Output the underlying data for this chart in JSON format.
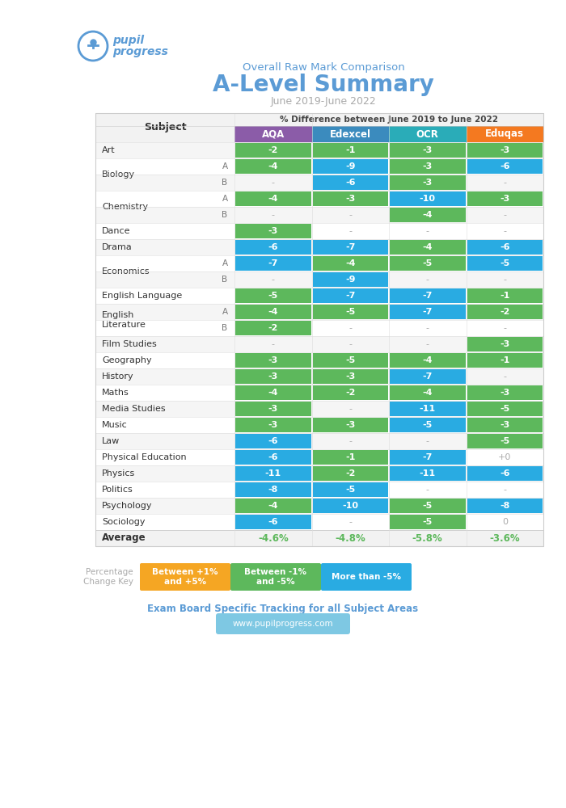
{
  "title_subtitle": "Overall Raw Mark Comparison",
  "title_main": "A-Level Summary",
  "title_date": "June 2019-June 2022",
  "col_header": "% Difference between June 2019 to June 2022",
  "columns": [
    "AQA",
    "Edexcel",
    "OCR",
    "Eduqas"
  ],
  "col_colors": [
    "#8B5CA8",
    "#3B8BBE",
    "#2AACB8",
    "#F47920"
  ],
  "rows": [
    {
      "subject": "Art",
      "sub": "",
      "vals": [
        "-2",
        "-1",
        "-3",
        "-3"
      ],
      "clrs": [
        "g",
        "g",
        "g",
        "g"
      ]
    },
    {
      "subject": "Biology",
      "sub": "A",
      "vals": [
        "-4",
        "-9",
        "-3",
        "-6"
      ],
      "clrs": [
        "g",
        "b",
        "g",
        "b"
      ]
    },
    {
      "subject": "Biology",
      "sub": "B",
      "vals": [
        "-",
        "-6",
        "-3",
        "-"
      ],
      "clrs": [
        "n",
        "b",
        "g",
        "n"
      ]
    },
    {
      "subject": "Chemistry",
      "sub": "A",
      "vals": [
        "-4",
        "-3",
        "-10",
        "-3"
      ],
      "clrs": [
        "g",
        "g",
        "b",
        "g"
      ]
    },
    {
      "subject": "Chemistry",
      "sub": "B",
      "vals": [
        "-",
        "-",
        "-4",
        "-"
      ],
      "clrs": [
        "n",
        "n",
        "g",
        "n"
      ]
    },
    {
      "subject": "Dance",
      "sub": "",
      "vals": [
        "-3",
        "-",
        "-",
        "-"
      ],
      "clrs": [
        "g",
        "n",
        "n",
        "n"
      ]
    },
    {
      "subject": "Drama",
      "sub": "",
      "vals": [
        "-6",
        "-7",
        "-4",
        "-6"
      ],
      "clrs": [
        "b",
        "b",
        "g",
        "b"
      ]
    },
    {
      "subject": "Economics",
      "sub": "A",
      "vals": [
        "-7",
        "-4",
        "-5",
        "-5"
      ],
      "clrs": [
        "b",
        "g",
        "g",
        "b"
      ]
    },
    {
      "subject": "Economics",
      "sub": "B",
      "vals": [
        "-",
        "-9",
        "-",
        "-"
      ],
      "clrs": [
        "n",
        "b",
        "n",
        "n"
      ]
    },
    {
      "subject": "English Language",
      "sub": "",
      "vals": [
        "-5",
        "-7",
        "-7",
        "-1"
      ],
      "clrs": [
        "g",
        "b",
        "b",
        "g"
      ]
    },
    {
      "subject": "English\nLiterature",
      "sub": "A",
      "vals": [
        "-4",
        "-5",
        "-7",
        "-2"
      ],
      "clrs": [
        "g",
        "g",
        "b",
        "g"
      ]
    },
    {
      "subject": "English\nLiterature",
      "sub": "B",
      "vals": [
        "-2",
        "-",
        "-",
        "-"
      ],
      "clrs": [
        "g",
        "n",
        "n",
        "n"
      ]
    },
    {
      "subject": "Film Studies",
      "sub": "",
      "vals": [
        "-",
        "-",
        "-",
        "-3"
      ],
      "clrs": [
        "n",
        "n",
        "n",
        "g"
      ]
    },
    {
      "subject": "Geography",
      "sub": "",
      "vals": [
        "-3",
        "-5",
        "-4",
        "-1"
      ],
      "clrs": [
        "g",
        "g",
        "g",
        "g"
      ]
    },
    {
      "subject": "History",
      "sub": "",
      "vals": [
        "-3",
        "-3",
        "-7",
        "-"
      ],
      "clrs": [
        "g",
        "g",
        "b",
        "n"
      ]
    },
    {
      "subject": "Maths",
      "sub": "",
      "vals": [
        "-4",
        "-2",
        "-4",
        "-3"
      ],
      "clrs": [
        "g",
        "g",
        "g",
        "g"
      ]
    },
    {
      "subject": "Media Studies",
      "sub": "",
      "vals": [
        "-3",
        "-",
        "-11",
        "-5"
      ],
      "clrs": [
        "g",
        "n",
        "b",
        "g"
      ]
    },
    {
      "subject": "Music",
      "sub": "",
      "vals": [
        "-3",
        "-3",
        "-5",
        "-3"
      ],
      "clrs": [
        "g",
        "g",
        "b",
        "g"
      ]
    },
    {
      "subject": "Law",
      "sub": "",
      "vals": [
        "-6",
        "-",
        "-",
        "-5"
      ],
      "clrs": [
        "b",
        "n",
        "n",
        "g"
      ]
    },
    {
      "subject": "Physical Education",
      "sub": "",
      "vals": [
        "-6",
        "-1",
        "-7",
        "+0"
      ],
      "clrs": [
        "b",
        "g",
        "b",
        "n"
      ]
    },
    {
      "subject": "Physics",
      "sub": "",
      "vals": [
        "-11",
        "-2",
        "-11",
        "-6"
      ],
      "clrs": [
        "b",
        "g",
        "b",
        "b"
      ]
    },
    {
      "subject": "Politics",
      "sub": "",
      "vals": [
        "-8",
        "-5",
        "-",
        "-"
      ],
      "clrs": [
        "b",
        "b",
        "n",
        "n"
      ]
    },
    {
      "subject": "Psychology",
      "sub": "",
      "vals": [
        "-4",
        "-10",
        "-5",
        "-8"
      ],
      "clrs": [
        "g",
        "b",
        "g",
        "b"
      ]
    },
    {
      "subject": "Sociology",
      "sub": "",
      "vals": [
        "-6",
        "-",
        "-5",
        "0"
      ],
      "clrs": [
        "b",
        "n",
        "g",
        "n"
      ]
    }
  ],
  "avg_row": [
    "-4.6%",
    "-4.8%",
    "-5.8%",
    "-3.6%"
  ],
  "green_color": "#5DB85C",
  "blue_color": "#29ABE2",
  "key_orange": "#F5A623",
  "key_green": "#5DB85C",
  "key_blue": "#29ABE2",
  "footer_text": "Exam Board Specific Tracking for all Subject Areas",
  "footer_url": "www.pupilprogress.com",
  "bg_color": "#FFFFFF"
}
